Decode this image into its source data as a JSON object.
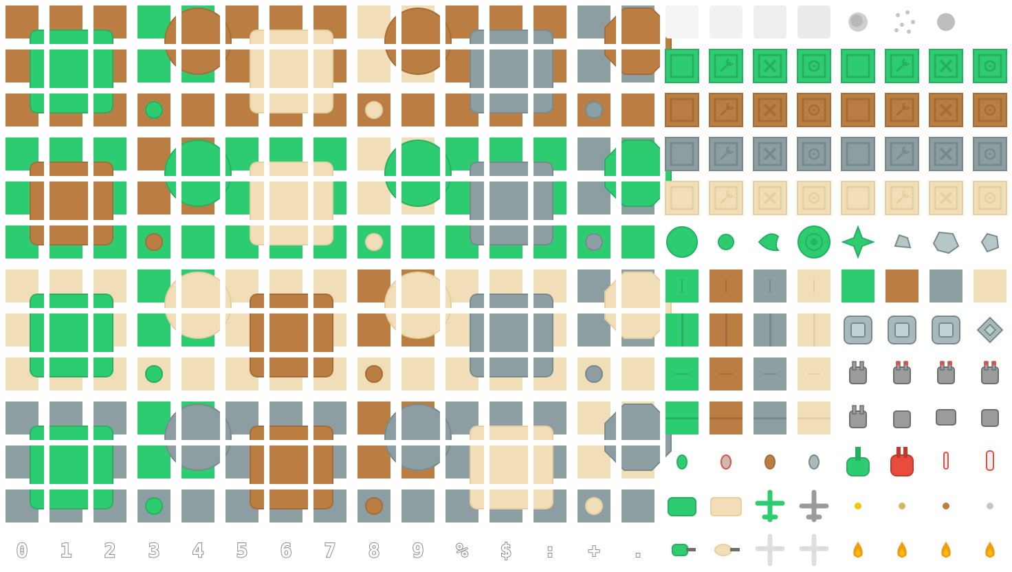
{
  "palette": {
    "grass": "#2ecc71",
    "grass_dark": "#27ae60",
    "dirt": "#bb7e42",
    "dirt_dark": "#a36c38",
    "sand": "#f1deb8",
    "sand_dark": "#e6cf9f",
    "stone": "#8c9ea2",
    "stone_dark": "#768a8e",
    "gray": "#9b9b9b",
    "gray_dark": "#6e6e6e",
    "red": "#e74c3c",
    "fire": "#f39c12",
    "fire_core": "#f1c40f"
  },
  "terrain_blocks": [
    {
      "base": "dirt",
      "b1": "grass",
      "b2": "sand",
      "b3": "stone"
    },
    {
      "base": "grass",
      "b1": "dirt",
      "b2": "sand",
      "b3": "stone"
    },
    {
      "base": "sand",
      "b1": "grass",
      "b2": "dirt",
      "b3": "stone"
    },
    {
      "base": "stone",
      "b1": "grass",
      "b2": "dirt",
      "b3": "sand"
    }
  ],
  "crate_rows": [
    "grass",
    "dirt",
    "stone",
    "sand"
  ],
  "crate_icons": [
    "none",
    "wrench-icon",
    "cross-icon",
    "target-icon",
    "none",
    "wrench-icon",
    "cross-icon",
    "target-icon"
  ],
  "vegetation_row": [
    "large-bush",
    "small-bush",
    "leaf",
    "tree-top",
    "star-plant",
    "rock-small",
    "rock-large",
    "rock-tiny"
  ],
  "glyphs": [
    "0",
    "1",
    "2",
    "3",
    "4",
    "5",
    "6",
    "7",
    "8",
    "9",
    "%",
    "$",
    ":",
    "+",
    "."
  ]
}
